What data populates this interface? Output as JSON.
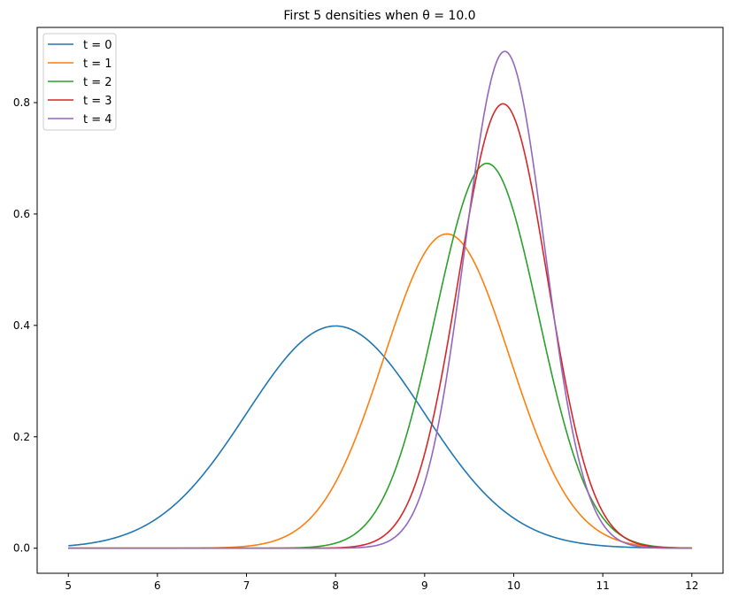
{
  "chart_data": {
    "type": "line",
    "title": "First 5 densities when θ = 10.0",
    "xlabel": "",
    "ylabel": "",
    "xlim": [
      4.65,
      12.35
    ],
    "ylim": [
      -0.045,
      0.935
    ],
    "xticks": [
      5,
      6,
      7,
      8,
      9,
      10,
      11,
      12
    ],
    "yticks": [
      0.0,
      0.2,
      0.4,
      0.6,
      0.8
    ],
    "ytick_labels": [
      "0.0",
      "0.2",
      "0.4",
      "0.6",
      "0.8"
    ],
    "x_range": [
      5,
      12
    ],
    "grid": false,
    "legend_position": "top-left",
    "series": [
      {
        "name": "t = 0",
        "distribution": "normal",
        "mean": 8.0,
        "sd": 1.0,
        "peak": 0.399,
        "color": "#1f77b4"
      },
      {
        "name": "t = 1",
        "distribution": "normal",
        "mean": 9.25,
        "sd": 0.7071,
        "peak": 0.564,
        "color": "#ff7f0e"
      },
      {
        "name": "t = 2",
        "distribution": "normal",
        "mean": 9.7,
        "sd": 0.5774,
        "peak": 0.691,
        "color": "#2ca02c"
      },
      {
        "name": "t = 3",
        "distribution": "normal",
        "mean": 9.88,
        "sd": 0.5,
        "peak": 0.798,
        "color": "#d62728"
      },
      {
        "name": "t = 4",
        "distribution": "normal",
        "mean": 9.9,
        "sd": 0.4472,
        "peak": 0.892,
        "color": "#9467bd"
      }
    ]
  }
}
